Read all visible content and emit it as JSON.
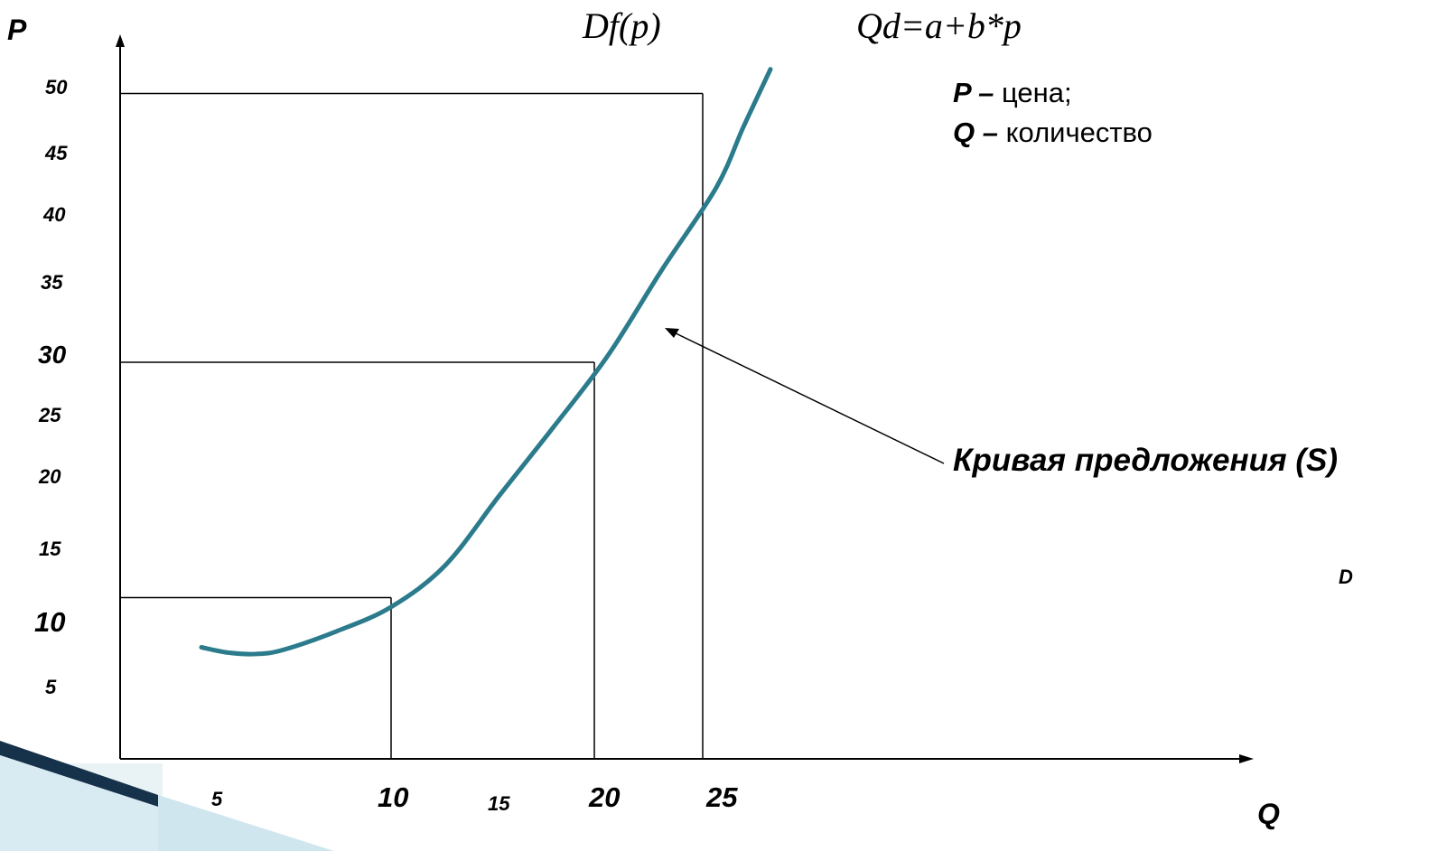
{
  "formulas": {
    "function": "Df(p)",
    "equation": "Qd=a+b*p"
  },
  "legend": {
    "p_symbol": "P",
    "p_text": "цена;",
    "q_symbol": "Q",
    "q_text": "количество",
    "dash": " – "
  },
  "annotation": {
    "curve_label": "Кривая предложения (S)",
    "corner_letter": "D"
  },
  "colors": {
    "curve": "#2b7b8c",
    "axis": "#000000"
  },
  "chart_data": {
    "type": "line",
    "title": "",
    "xlabel": "Q",
    "ylabel": "P",
    "x_ticks": [
      "5",
      "10",
      "15",
      "20",
      "25"
    ],
    "y_ticks": [
      "5",
      "10",
      "15",
      "20",
      "25",
      "30",
      "35",
      "40",
      "45",
      "50"
    ],
    "xlim": [
      0,
      45
    ],
    "ylim": [
      0,
      50
    ],
    "grid": false,
    "series": [
      {
        "name": "Кривая предложения (S)",
        "points": [
          [
            3,
            8.3
          ],
          [
            4,
            7.9
          ],
          [
            5,
            7.8
          ],
          [
            6,
            8.1
          ],
          [
            8,
            9.5
          ],
          [
            10,
            11.3
          ],
          [
            12,
            14.4
          ],
          [
            14,
            19.6
          ],
          [
            16,
            24.7
          ],
          [
            18,
            30.0
          ],
          [
            20,
            36.4
          ],
          [
            22,
            42.5
          ],
          [
            23,
            47.0
          ],
          [
            24,
            51.3
          ]
        ]
      }
    ],
    "reference_points": [
      {
        "q": 10,
        "p": 12
      },
      {
        "q": 17.5,
        "p": 29.5
      },
      {
        "q": 21.5,
        "p": 49.5
      }
    ]
  }
}
